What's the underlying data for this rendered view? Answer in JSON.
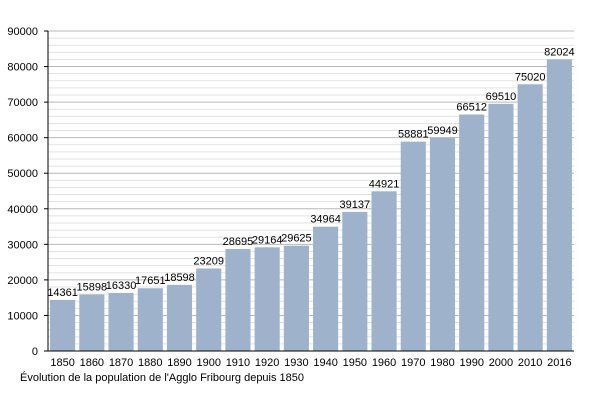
{
  "caption": "Évolution de la population de l'Agglo Fribourg depuis 1850",
  "colors": {
    "bar": "#9eb3cb",
    "grid": "#d3d3d3",
    "axis": "#000000"
  },
  "chart_data": {
    "type": "bar",
    "title": "",
    "xlabel": "",
    "ylabel": "",
    "ylim": [
      0,
      90000
    ],
    "ytick_step": 10000,
    "grid": true,
    "data_labels": true,
    "categories": [
      "1850",
      "1860",
      "1870",
      "1880",
      "1890",
      "1900",
      "1910",
      "1920",
      "1930",
      "1940",
      "1950",
      "1960",
      "1970",
      "1980",
      "1990",
      "2000",
      "2010",
      "2016"
    ],
    "values": [
      14361,
      15898,
      16330,
      17651,
      18598,
      23209,
      28695,
      29164,
      29625,
      34964,
      39137,
      44921,
      58881,
      59949,
      66512,
      69510,
      75020,
      82024
    ]
  }
}
